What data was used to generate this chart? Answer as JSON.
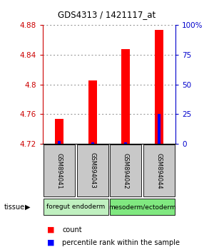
{
  "title": "GDS4313 / 1421117_at",
  "samples": [
    "GSM894041",
    "GSM894043",
    "GSM894042",
    "GSM894044"
  ],
  "red_values": [
    4.753,
    4.805,
    4.848,
    4.874
  ],
  "blue_values": [
    4.724,
    4.722,
    4.722,
    4.76
  ],
  "y_min": 4.72,
  "y_max": 4.88,
  "y_ticks": [
    4.72,
    4.76,
    4.8,
    4.84,
    4.88
  ],
  "right_ticks": [
    0,
    25,
    50,
    75,
    100
  ],
  "right_tick_labels": [
    "0",
    "25",
    "50",
    "75",
    "100%"
  ],
  "groups": [
    {
      "label": "foregut endoderm",
      "indices": [
        0,
        1
      ],
      "color": "#c0f0c0"
    },
    {
      "label": "mesoderm/ectoderm",
      "indices": [
        2,
        3
      ],
      "color": "#80e880"
    }
  ],
  "tissue_label": "tissue",
  "left_tick_color": "#cc0000",
  "right_tick_color": "#0000cc",
  "red_bar_width": 0.25,
  "blue_bar_width": 0.08,
  "grid_color": "#888888",
  "sample_box_color": "#c8c8c8",
  "legend_red_label": "count",
  "legend_blue_label": "percentile rank within the sample",
  "title_fontsize": 8.5,
  "tick_fontsize": 7.5,
  "sample_fontsize": 6,
  "tissue_fontsize": 6.5
}
